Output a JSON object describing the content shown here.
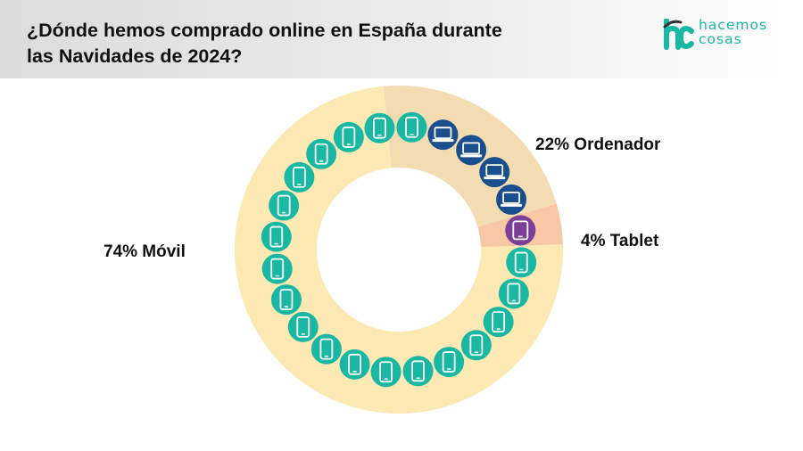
{
  "header": {
    "title_line1": "¿Dónde hemos comprado online en España durante",
    "title_line2": "las Navidades de 2024?"
  },
  "logo": {
    "mark": "hc",
    "line1": "hacemos",
    "line2": "cosas",
    "color": "#1ab7a3"
  },
  "chart_data": {
    "type": "pie",
    "donut": true,
    "title": "¿Dónde hemos comprado online en España durante las Navidades de 2024?",
    "slices": [
      {
        "label": "74% Móvil",
        "name": "Móvil",
        "value": 74,
        "color": "#fde9b3",
        "icon": "smartphone-icon",
        "icon_color": "#1ab7a3",
        "icon_count": 19
      },
      {
        "label": "22% Ordenador",
        "name": "Ordenador",
        "value": 22,
        "color": "#f3dcb2",
        "icon": "laptop-icon",
        "icon_color": "#1a4e8c",
        "icon_count": 4
      },
      {
        "label": "4% Tablet",
        "name": "Tablet",
        "value": 4,
        "color": "#f8c7a4",
        "icon": "tablet-icon",
        "icon_color": "#7b3f98",
        "icon_count": 1
      }
    ]
  }
}
